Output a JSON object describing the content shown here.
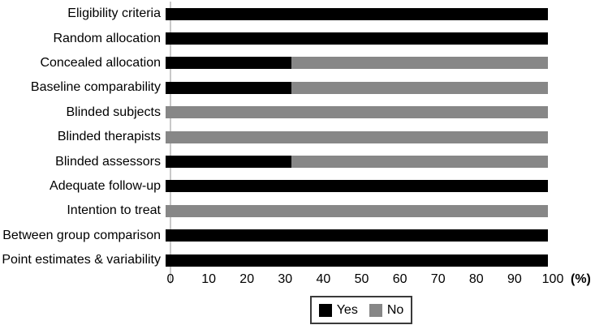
{
  "chart_data": {
    "type": "bar",
    "orientation": "horizontal",
    "stacked": true,
    "title": "",
    "xlabel": "(%)",
    "ylabel": "",
    "xlim": [
      0,
      100
    ],
    "xticks": [
      0,
      10,
      20,
      30,
      40,
      50,
      60,
      70,
      80,
      90,
      100
    ],
    "grid": false,
    "categories": [
      "Eligibility criteria",
      "Random allocation",
      "Concealed allocation",
      "Baseline comparability",
      "Blinded subjects",
      "Blinded therapists",
      "Blinded assessors",
      "Adequate follow-up",
      "Intention to treat",
      "Between group comparison",
      "Point estimates & variability"
    ],
    "series": [
      {
        "name": "Yes",
        "color": "#000000",
        "values": [
          100,
          100,
          33,
          33,
          0,
          0,
          33,
          100,
          0,
          100,
          100
        ]
      },
      {
        "name": "No",
        "color": "#878787",
        "values": [
          0,
          0,
          67,
          67,
          100,
          100,
          67,
          0,
          100,
          0,
          0
        ]
      }
    ],
    "legend": {
      "position": "bottom",
      "entries": [
        "Yes",
        "No"
      ]
    }
  }
}
